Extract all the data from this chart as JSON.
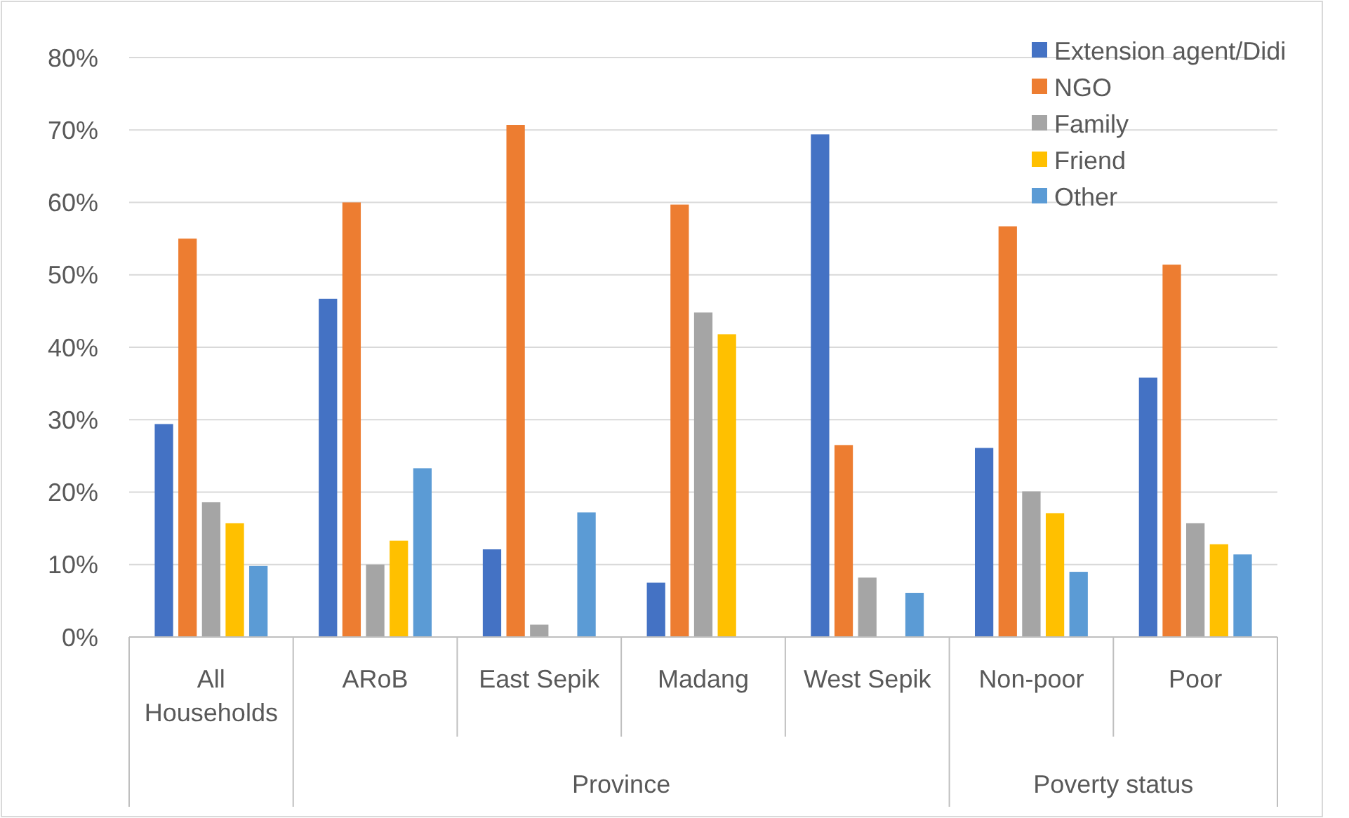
{
  "chart_data": {
    "type": "bar",
    "categories": [
      "All Households",
      "ARoB",
      "East Sepik",
      "Madang",
      "West Sepik",
      "Non-poor",
      "Poor"
    ],
    "series": [
      {
        "name": "Extension agent/Didi",
        "color": "#4472c4",
        "values": [
          29.4,
          46.7,
          12.1,
          7.5,
          69.4,
          26.1,
          35.8
        ]
      },
      {
        "name": "NGO",
        "color": "#ed7d31",
        "values": [
          55,
          60,
          70.7,
          59.7,
          26.5,
          56.7,
          51.4
        ]
      },
      {
        "name": "Family",
        "color": "#a5a5a5",
        "values": [
          18.6,
          10,
          1.7,
          44.8,
          8.2,
          20.1,
          15.7
        ]
      },
      {
        "name": "Friend",
        "color": "#ffc000",
        "values": [
          15.7,
          13.3,
          0,
          41.8,
          0,
          17.1,
          12.8
        ]
      },
      {
        "name": "Other",
        "color": "#5b9bd5",
        "values": [
          9.8,
          23.3,
          17.2,
          0,
          6.1,
          9,
          11.4
        ]
      }
    ],
    "ylim": [
      0,
      80
    ],
    "yticks": [
      {
        "value": 0,
        "label": "0%"
      },
      {
        "value": 10,
        "label": "10%"
      },
      {
        "value": 20,
        "label": "20%"
      },
      {
        "value": 30,
        "label": "30%"
      },
      {
        "value": 40,
        "label": "40%"
      },
      {
        "value": 50,
        "label": "50%"
      },
      {
        "value": 60,
        "label": "60%"
      },
      {
        "value": 70,
        "label": "70%"
      },
      {
        "value": 80,
        "label": "80%"
      }
    ],
    "grid": "y",
    "legend": "top right",
    "annotations": [
      "Province",
      "Poverty status"
    ]
  }
}
